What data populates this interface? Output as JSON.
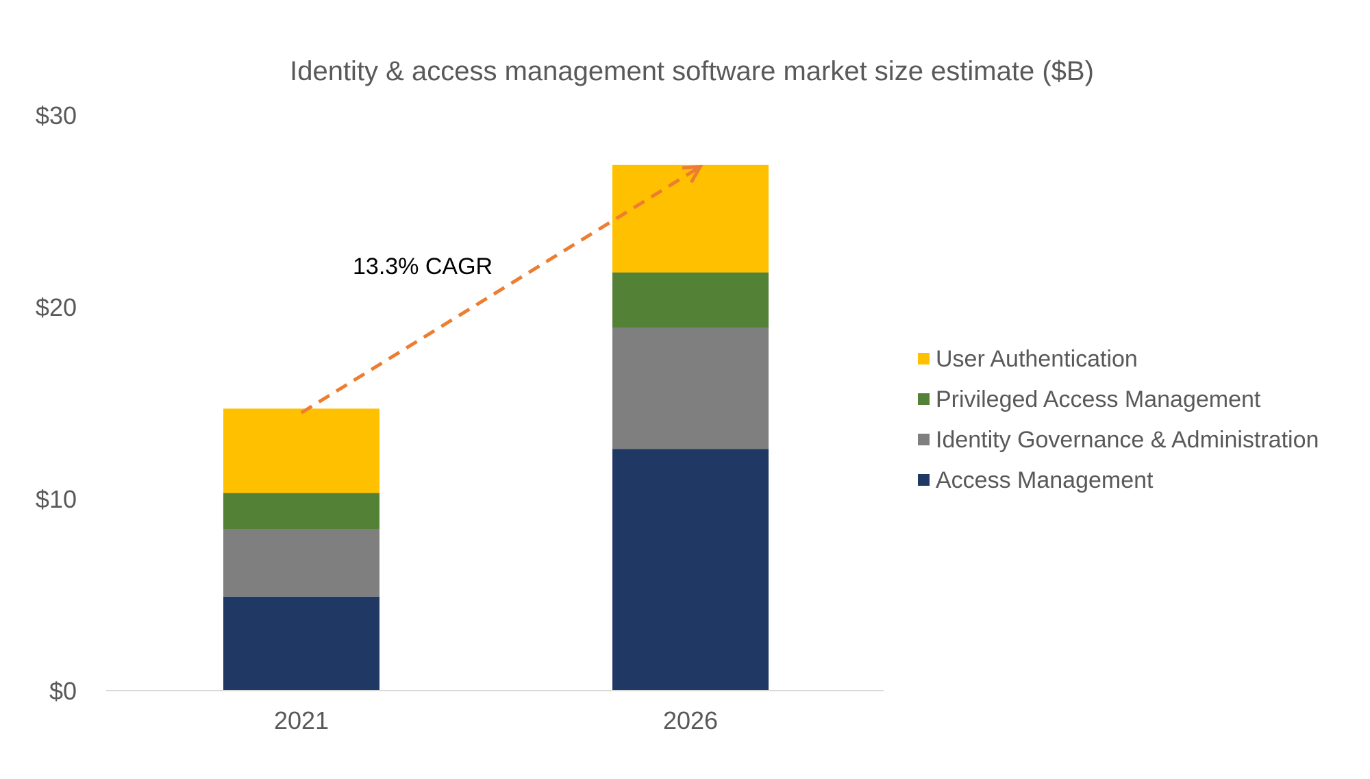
{
  "chart_data": {
    "type": "bar",
    "stacked": true,
    "title": "Identity & access management software market size estimate ($B)",
    "xlabel": "",
    "ylabel": "",
    "categories": [
      "2021",
      "2026"
    ],
    "ylim": [
      0,
      30
    ],
    "yticks": [
      0,
      10,
      20,
      30
    ],
    "ytick_labels": [
      "$0",
      "$10",
      "$20",
      "$30"
    ],
    "grid": false,
    "legend_position": "right",
    "series": [
      {
        "name": "Access Management",
        "values": [
          4.9,
          12.6
        ],
        "color": "#1F3864"
      },
      {
        "name": "Identity Governance & Administration",
        "values": [
          3.5,
          6.3
        ],
        "color": "#7F7F7F"
      },
      {
        "name": "Privileged Access Management",
        "values": [
          1.9,
          2.9
        ],
        "color": "#538135"
      },
      {
        "name": "User Authentication",
        "values": [
          4.4,
          5.6
        ],
        "color": "#FFC000"
      }
    ],
    "legend_order": [
      "User Authentication",
      "Privileged Access Management",
      "Identity Governance & Administration",
      "Access Management"
    ],
    "annotation": {
      "text": "13.3% CAGR",
      "arrow_from": {
        "category": "2021",
        "value": 14.7
      },
      "arrow_to": {
        "category": "2026",
        "value": 27.3
      },
      "color": "#ED7D31"
    }
  }
}
